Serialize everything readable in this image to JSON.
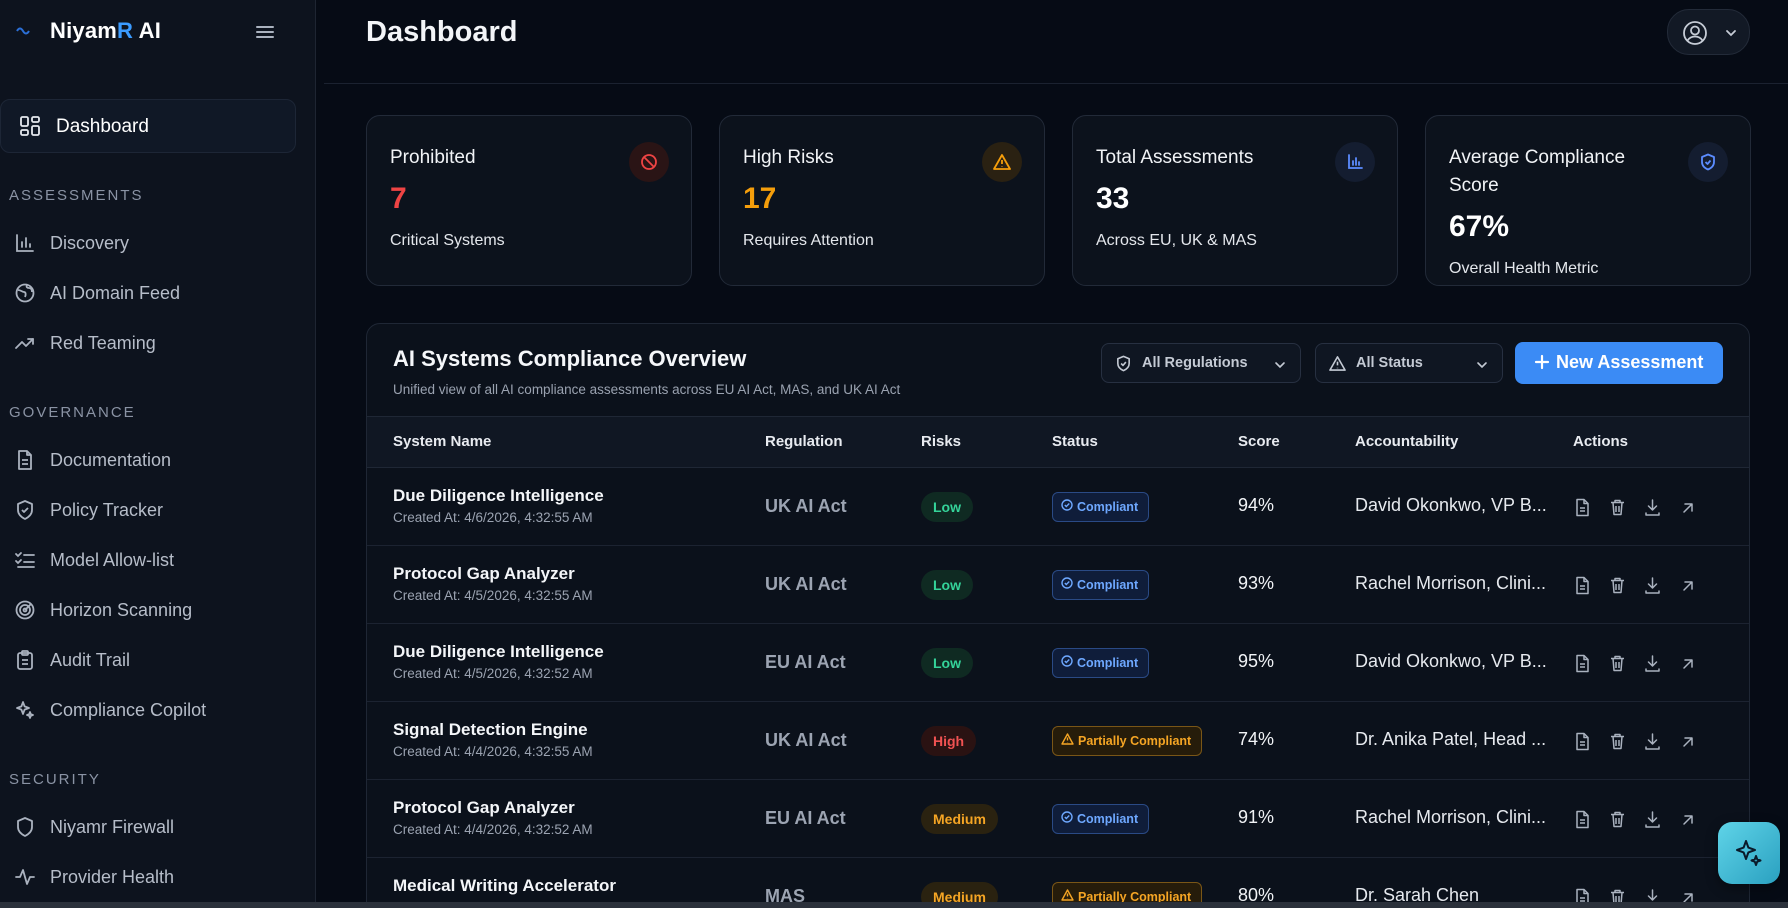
{
  "brand": {
    "name_start": "Niyam",
    "name_accent": "R",
    "name_end": " AI"
  },
  "sidebar": {
    "active": {
      "label": "Dashboard",
      "icon": "grid-icon"
    },
    "sections": [
      {
        "title": "ASSESSMENTS",
        "items": [
          {
            "label": "Discovery",
            "icon": "bar-chart-icon"
          },
          {
            "label": "AI Domain Feed",
            "icon": "globe-icon"
          },
          {
            "label": "Red Teaming",
            "icon": "trending-up-icon"
          }
        ]
      },
      {
        "title": "GOVERNANCE",
        "items": [
          {
            "label": "Documentation",
            "icon": "document-icon"
          },
          {
            "label": "Policy Tracker",
            "icon": "shield-check-icon"
          },
          {
            "label": "Model Allow-list",
            "icon": "list-check-icon"
          },
          {
            "label": "Horizon Scanning",
            "icon": "radar-icon"
          },
          {
            "label": "Audit Trail",
            "icon": "clipboard-icon"
          },
          {
            "label": "Compliance Copilot",
            "icon": "sparkles-icon"
          }
        ]
      },
      {
        "title": "SECURITY",
        "items": [
          {
            "label": "Niyamr Firewall",
            "icon": "shield-icon"
          },
          {
            "label": "Provider Health",
            "icon": "activity-icon"
          }
        ]
      }
    ]
  },
  "header": {
    "title": "Dashboard"
  },
  "stats": [
    {
      "title": "Prohibited",
      "value": "7",
      "sub": "Critical Systems",
      "color": "#ef4444",
      "icon": "ban-icon"
    },
    {
      "title": "High Risks",
      "value": "17",
      "sub": "Requires Attention",
      "color": "#f59e0b",
      "icon": "warning-icon"
    },
    {
      "title": "Total Assessments",
      "value": "33",
      "sub": "Across EU, UK & MAS",
      "color": "#ffffff",
      "icon": "bar-chart-icon"
    },
    {
      "title": "Average Compliance Score",
      "value": "67%",
      "sub": "Overall Health Metric",
      "color": "#ffffff",
      "icon": "shield-check-icon"
    }
  ],
  "panel": {
    "title": "AI Systems Compliance Overview",
    "subtitle": "Unified view of all AI compliance assessments across EU AI Act, MAS, and UK AI Act",
    "filter_regulations": "All Regulations",
    "filter_status": "All Status",
    "new_button": "New Assessment",
    "columns": [
      "System Name",
      "Regulation",
      "Risks",
      "Status",
      "Score",
      "Accountability",
      "Actions"
    ],
    "rows": [
      {
        "name": "Due Diligence Intelligence",
        "created": "Created At: 4/6/2026, 4:32:55 AM",
        "regulation": "UK AI Act",
        "risk": "Low",
        "status": "Compliant",
        "score": "94%",
        "accountability": "David Okonkwo, VP B..."
      },
      {
        "name": "Protocol Gap Analyzer",
        "created": "Created At: 4/5/2026, 4:32:55 AM",
        "regulation": "UK AI Act",
        "risk": "Low",
        "status": "Compliant",
        "score": "93%",
        "accountability": "Rachel Morrison, Clini..."
      },
      {
        "name": "Due Diligence Intelligence",
        "created": "Created At: 4/5/2026, 4:32:52 AM",
        "regulation": "EU AI Act",
        "risk": "Low",
        "status": "Compliant",
        "score": "95%",
        "accountability": "David Okonkwo, VP B..."
      },
      {
        "name": "Signal Detection Engine",
        "created": "Created At: 4/4/2026, 4:32:55 AM",
        "regulation": "UK AI Act",
        "risk": "High",
        "status": "Partially Compliant",
        "score": "74%",
        "accountability": "Dr. Anika Patel, Head ..."
      },
      {
        "name": "Protocol Gap Analyzer",
        "created": "Created At: 4/4/2026, 4:32:52 AM",
        "regulation": "EU AI Act",
        "risk": "Medium",
        "status": "Compliant",
        "score": "91%",
        "accountability": "Rachel Morrison, Clini..."
      },
      {
        "name": "Medical Writing Accelerator",
        "created": "",
        "regulation": "MAS",
        "risk": "Medium",
        "status": "Partially Compliant",
        "score": "80%",
        "accountability": "Dr. Sarah Chen"
      }
    ]
  },
  "colors": {
    "accent": "#3b8bf5",
    "bg": "#060b15",
    "sidebar": "#0d131e"
  }
}
